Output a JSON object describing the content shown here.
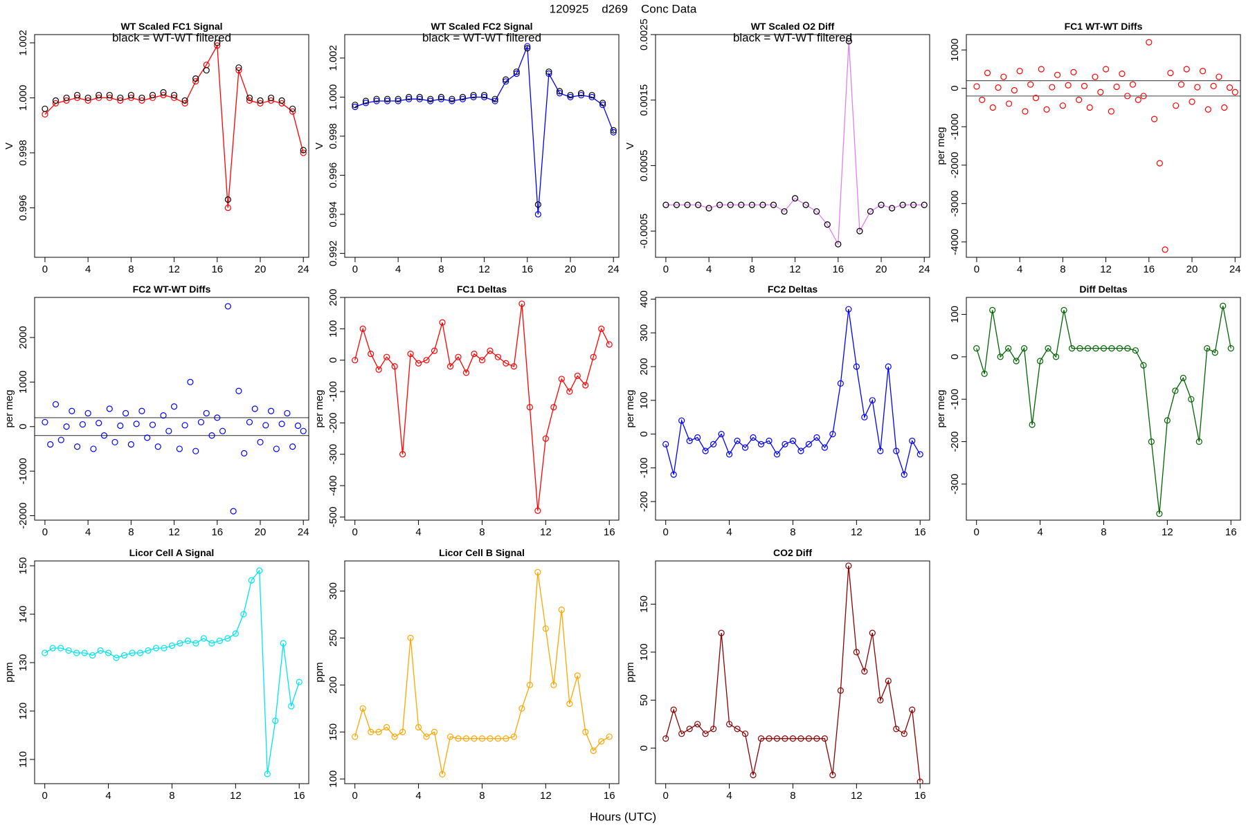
{
  "title": "120925    d269    Conc Data",
  "xlabel": "Hours (UTC)",
  "chart_data": [
    {
      "type": "line",
      "title": "WT Scaled FC1 Signal",
      "annotation": "black = WT-WT filtered",
      "ylabel": "V",
      "x": [
        0,
        1,
        2,
        3,
        4,
        5,
        6,
        7,
        8,
        9,
        10,
        11,
        12,
        13,
        14,
        15,
        16,
        17,
        18,
        19,
        20,
        21,
        22,
        23,
        24
      ],
      "xlim": [
        -0.96,
        24.5
      ],
      "xticks": [
        0,
        4,
        8,
        12,
        16,
        20,
        24
      ],
      "ylim": [
        0.9942,
        1.0023
      ],
      "yticks": [
        0.996,
        0.998,
        {
          "value": 1,
          "label": "1.000"
        },
        1.002
      ],
      "series": [
        {
          "color": "#ff0000",
          "style": "both",
          "values": [
            0.9994,
            0.9998,
            0.9999,
            1.0,
            0.9999,
            1.0,
            1.0,
            0.9999,
            1.0,
            0.9999,
            1.0,
            1.0001,
            1.0,
            0.9998,
            1.0006,
            1.0012,
            1.0019,
            0.996,
            1.001,
            0.9999,
            0.9998,
            0.9999,
            0.9998,
            0.9995,
            0.998
          ]
        },
        {
          "color": "#000000",
          "style": "points",
          "values": [
            0.9996,
            0.9999,
            1.0,
            1.0001,
            1.0,
            1.0001,
            1.0001,
            1.0,
            1.0001,
            1.0,
            1.0001,
            1.0002,
            1.0001,
            0.9999,
            1.0007,
            1.001,
            1.002,
            0.9963,
            1.0011,
            1.0,
            0.9999,
            1.0,
            0.9999,
            0.9996,
            0.9981
          ]
        }
      ]
    },
    {
      "type": "line",
      "title": "WT Scaled FC2 Signal",
      "annotation": "black = WT-WT filtered",
      "ylabel": "V",
      "x": [
        0,
        1,
        2,
        3,
        4,
        5,
        6,
        7,
        8,
        9,
        10,
        11,
        12,
        13,
        14,
        15,
        16,
        17,
        18,
        19,
        20,
        21,
        22,
        23,
        24
      ],
      "xlim": [
        -0.96,
        24.5
      ],
      "xticks": [
        0,
        4,
        8,
        12,
        16,
        20,
        24
      ],
      "ylim": [
        0.9918,
        1.0032
      ],
      "yticks": [
        0.992,
        0.994,
        0.996,
        0.998,
        {
          "value": 1,
          "label": "1.000"
        },
        1.002
      ],
      "series": [
        {
          "color": "#0000ff",
          "style": "both",
          "values": [
            0.9995,
            0.9997,
            0.9998,
            0.9998,
            0.9998,
            0.9999,
            0.9999,
            0.9998,
            0.9999,
            0.9998,
            0.9999,
            1.0,
            1.0,
            0.9998,
            1.0008,
            1.0012,
            1.0026,
            0.994,
            1.0012,
            1.0002,
            1.0,
            1.0001,
            1.0,
            0.9996,
            0.9982
          ]
        },
        {
          "color": "#000000",
          "style": "points",
          "values": [
            0.9996,
            0.9998,
            0.9999,
            0.9999,
            0.9999,
            1.0,
            1.0,
            0.9999,
            1.0,
            0.9999,
            1.0,
            1.0001,
            1.0001,
            0.9999,
            1.0009,
            1.0013,
            1.0025,
            0.9945,
            1.0013,
            1.0003,
            1.0001,
            1.0002,
            1.0001,
            0.9997,
            0.9983
          ]
        }
      ]
    },
    {
      "type": "line",
      "title": "WT Scaled O2 Diff",
      "annotation": "black = WT-WT filtered",
      "ylabel": "V",
      "x": [
        0,
        1,
        2,
        3,
        4,
        5,
        6,
        7,
        8,
        9,
        10,
        11,
        12,
        13,
        14,
        15,
        16,
        17,
        18,
        19,
        20,
        21,
        22,
        23,
        24
      ],
      "xlim": [
        -0.96,
        24.5
      ],
      "xticks": [
        0,
        4,
        8,
        12,
        16,
        20,
        24
      ],
      "ylim": [
        -0.0009,
        0.0025
      ],
      "yticks": [
        -0.0005,
        0.0005,
        0.0015,
        0.0025
      ],
      "series": [
        {
          "color": "#e080f0",
          "style": "both",
          "values": [
            -0.0001,
            -0.0001,
            -0.0001,
            -0.0001,
            -0.00015,
            -0.0001,
            -0.0001,
            -0.0001,
            -0.0001,
            -0.0001,
            -0.0001,
            -0.0002,
            0.0,
            -0.0001,
            -0.0002,
            -0.0004,
            -0.0007,
            0.0024,
            -0.0005,
            -0.0002,
            -0.0001,
            -0.00015,
            -0.0001,
            -0.0001,
            -0.0001
          ]
        },
        {
          "color": "#000000",
          "style": "points",
          "values": [
            -0.0001,
            -0.0001,
            -0.0001,
            -0.0001,
            -0.00015,
            -0.0001,
            -0.0001,
            -0.0001,
            -0.0001,
            -0.0001,
            -0.0001,
            -0.0002,
            0.0,
            -0.0001,
            -0.0002,
            -0.0004,
            -0.0007,
            0.0024,
            -0.0005,
            -0.0002,
            -0.0001,
            -0.00015,
            -0.0001,
            -0.0001,
            -0.0001
          ]
        }
      ]
    },
    {
      "type": "scatter",
      "title": "FC1 WT-WT Diffs",
      "ylabel": "per meg",
      "x": [
        0,
        0.5,
        1,
        1.5,
        2,
        2.5,
        3,
        3.5,
        4,
        4.5,
        5,
        5.5,
        6,
        6.5,
        7,
        7.5,
        8,
        8.5,
        9,
        9.5,
        10,
        10.5,
        11,
        11.5,
        12,
        12.5,
        13,
        13.5,
        14,
        14.5,
        15,
        15.5,
        16,
        16.5,
        17,
        17.5,
        18,
        18.5,
        19,
        19.5,
        20,
        20.5,
        21,
        21.5,
        22,
        22.5,
        23,
        23.5,
        24
      ],
      "xlim": [
        -0.96,
        24.5
      ],
      "xticks": [
        0,
        4,
        8,
        12,
        16,
        20,
        24
      ],
      "ylim": [
        -4400,
        1400
      ],
      "yticks": [
        -4000,
        -3000,
        -2000,
        -1000,
        0,
        1000
      ],
      "hlines": [
        200,
        -200
      ],
      "series": [
        {
          "color": "#ff0000",
          "style": "points",
          "values": [
            50,
            -300,
            400,
            -500,
            20,
            300,
            -400,
            -50,
            450,
            -600,
            100,
            -250,
            500,
            -550,
            30,
            350,
            -450,
            80,
            420,
            -300,
            60,
            -500,
            300,
            -100,
            500,
            -600,
            40,
            380,
            -200,
            100,
            -300,
            -200,
            1200,
            -800,
            -1950,
            -4200,
            400,
            -450,
            100,
            500,
            -350,
            30,
            450,
            -550,
            60,
            300,
            -500,
            20,
            -100
          ]
        }
      ]
    },
    {
      "type": "scatter",
      "title": "FC2 WT-WT Diffs",
      "ylabel": "per meg",
      "x": [
        0,
        0.5,
        1,
        1.5,
        2,
        2.5,
        3,
        3.5,
        4,
        4.5,
        5,
        5.5,
        6,
        6.5,
        7,
        7.5,
        8,
        8.5,
        9,
        9.5,
        10,
        10.5,
        11,
        11.5,
        12,
        12.5,
        13,
        13.5,
        14,
        14.5,
        15,
        15.5,
        16,
        16.5,
        17,
        17.5,
        18,
        18.5,
        19,
        19.5,
        20,
        20.5,
        21,
        21.5,
        22,
        22.5,
        23,
        23.5,
        24
      ],
      "xlim": [
        -0.96,
        24.5
      ],
      "xticks": [
        0,
        4,
        8,
        12,
        16,
        20,
        24
      ],
      "ylim": [
        -2100,
        2900
      ],
      "yticks": [
        -2000,
        -1000,
        0,
        1000,
        2000
      ],
      "hlines": [
        200,
        -200
      ],
      "series": [
        {
          "color": "#0000ff",
          "style": "points",
          "values": [
            100,
            -400,
            500,
            -300,
            0,
            350,
            -450,
            50,
            300,
            -500,
            80,
            -200,
            400,
            -350,
            20,
            300,
            -400,
            60,
            350,
            -250,
            40,
            -450,
            250,
            -100,
            450,
            -500,
            30,
            1000,
            -550,
            100,
            300,
            -200,
            200,
            -100,
            2700,
            -1900,
            800,
            -600,
            100,
            400,
            -350,
            30,
            350,
            -500,
            60,
            300,
            -450,
            20,
            -100
          ]
        }
      ]
    },
    {
      "type": "line",
      "title": "FC1 Deltas",
      "ylabel": "per meg",
      "x": [
        0,
        0.5,
        1,
        1.5,
        2,
        2.5,
        3,
        3.5,
        4,
        4.5,
        5,
        5.5,
        6,
        6.5,
        7,
        7.5,
        8,
        8.5,
        9,
        9.5,
        10,
        10.5,
        11,
        11.5,
        12,
        12.5,
        13,
        13.5,
        14,
        14.5,
        15,
        15.5,
        16
      ],
      "xlim": [
        -0.64,
        16.6
      ],
      "xticks": [
        0,
        4,
        8,
        12,
        16
      ],
      "ylim": [
        -510,
        200
      ],
      "yticks": [
        -500,
        -400,
        -300,
        -200,
        -100,
        0,
        100,
        200
      ],
      "series": [
        {
          "color": "#ff0000",
          "style": "both",
          "values": [
            0,
            100,
            20,
            -30,
            10,
            -20,
            -300,
            20,
            -10,
            0,
            30,
            120,
            -20,
            10,
            -40,
            20,
            0,
            30,
            10,
            -10,
            -20,
            180,
            -150,
            -480,
            -250,
            -150,
            -60,
            -100,
            -50,
            -80,
            10,
            100,
            50
          ]
        }
      ]
    },
    {
      "type": "line",
      "title": "FC2 Deltas",
      "ylabel": "per meg",
      "x": [
        0,
        0.5,
        1,
        1.5,
        2,
        2.5,
        3,
        3.5,
        4,
        4.5,
        5,
        5.5,
        6,
        6.5,
        7,
        7.5,
        8,
        8.5,
        9,
        9.5,
        10,
        10.5,
        11,
        11.5,
        12,
        12.5,
        13,
        13.5,
        14,
        14.5,
        15,
        15.5,
        16
      ],
      "xlim": [
        -0.64,
        16.6
      ],
      "xticks": [
        0,
        4,
        8,
        12,
        16
      ],
      "ylim": [
        -255,
        405
      ],
      "yticks": [
        -200,
        -100,
        0,
        100,
        200,
        300,
        400
      ],
      "series": [
        {
          "color": "#0000ff",
          "style": "both",
          "values": [
            -30,
            -120,
            40,
            -20,
            -10,
            -50,
            -30,
            0,
            -60,
            -20,
            -40,
            -10,
            -30,
            -20,
            -60,
            -30,
            -20,
            -50,
            -30,
            -10,
            -40,
            0,
            150,
            370,
            200,
            50,
            100,
            -50,
            200,
            -50,
            -120,
            -20,
            -60
          ]
        }
      ]
    },
    {
      "type": "line",
      "title": "Diff Deltas",
      "ylabel": "per meg",
      "x": [
        0,
        0.5,
        1,
        1.5,
        2,
        2.5,
        3,
        3.5,
        4,
        4.5,
        5,
        5.5,
        6,
        6.5,
        7,
        7.5,
        8,
        8.5,
        9,
        9.5,
        10,
        10.5,
        11,
        11.5,
        12,
        12.5,
        13,
        13.5,
        14,
        14.5,
        15,
        15.5,
        16
      ],
      "xlim": [
        -0.64,
        16.6
      ],
      "xticks": [
        0,
        4,
        8,
        12,
        16
      ],
      "ylim": [
        -385,
        140
      ],
      "yticks": [
        -300,
        -200,
        -100,
        0,
        100
      ],
      "series": [
        {
          "color": "#006400",
          "style": "both",
          "values": [
            20,
            -40,
            110,
            0,
            20,
            -10,
            20,
            -160,
            -10,
            20,
            0,
            110,
            20,
            20,
            20,
            20,
            20,
            20,
            20,
            20,
            15,
            -20,
            -200,
            -370,
            -150,
            -80,
            -50,
            -100,
            -200,
            20,
            10,
            120,
            20
          ]
        }
      ]
    },
    {
      "type": "line",
      "title": "Licor Cell A Signal",
      "ylabel": "ppm",
      "x": [
        0,
        0.5,
        1,
        1.5,
        2,
        2.5,
        3,
        3.5,
        4,
        4.5,
        5,
        5.5,
        6,
        6.5,
        7,
        7.5,
        8,
        8.5,
        9,
        9.5,
        10,
        10.5,
        11,
        11.5,
        12,
        12.5,
        13,
        13.5,
        14,
        14.5,
        15,
        15.5,
        16
      ],
      "xlim": [
        -0.64,
        16.6
      ],
      "xticks": [
        0,
        4,
        8,
        12,
        16
      ],
      "ylim": [
        105,
        151
      ],
      "yticks": [
        110,
        120,
        130,
        140,
        150
      ],
      "series": [
        {
          "color": "#00e5ee",
          "style": "both",
          "values": [
            132,
            133,
            133,
            132.5,
            132,
            132,
            131.5,
            132.5,
            132,
            131,
            131.5,
            132,
            132,
            132.5,
            133,
            133,
            133.5,
            134,
            134.5,
            134,
            135,
            134,
            134.5,
            135,
            136,
            140,
            147,
            149,
            107,
            118,
            134,
            121,
            126
          ]
        }
      ]
    },
    {
      "type": "line",
      "title": "Licor Cell B Signal",
      "ylabel": "ppm",
      "x": [
        0,
        0.5,
        1,
        1.5,
        2,
        2.5,
        3,
        3.5,
        4,
        4.5,
        5,
        5.5,
        6,
        6.5,
        7,
        7.5,
        8,
        8.5,
        9,
        9.5,
        10,
        10.5,
        11,
        11.5,
        12,
        12.5,
        13,
        13.5,
        14,
        14.5,
        15,
        15.5,
        16
      ],
      "xlim": [
        -0.64,
        16.6
      ],
      "xticks": [
        0,
        4,
        8,
        12,
        16
      ],
      "ylim": [
        95,
        332
      ],
      "yticks": [
        100,
        150,
        200,
        250,
        300
      ],
      "series": [
        {
          "color": "#ffa500",
          "style": "both",
          "values": [
            145,
            175,
            150,
            150,
            155,
            145,
            150,
            250,
            155,
            145,
            150,
            105,
            145,
            143,
            143,
            143,
            143,
            143,
            143,
            143,
            145,
            175,
            200,
            320,
            260,
            200,
            280,
            180,
            210,
            150,
            130,
            140,
            145
          ]
        }
      ]
    },
    {
      "type": "line",
      "title": "CO2 Diff",
      "ylabel": "ppm",
      "x": [
        0,
        0.5,
        1,
        1.5,
        2,
        2.5,
        3,
        3.5,
        4,
        4.5,
        5,
        5.5,
        6,
        6.5,
        7,
        7.5,
        8,
        8.5,
        9,
        9.5,
        10,
        10.5,
        11,
        11.5,
        12,
        12.5,
        13,
        13.5,
        14,
        14.5,
        15,
        15.5,
        16
      ],
      "xlim": [
        -0.64,
        16.6
      ],
      "xticks": [
        0,
        4,
        8,
        12,
        16
      ],
      "ylim": [
        -37,
        195
      ],
      "yticks": [
        0,
        50,
        100,
        150
      ],
      "series": [
        {
          "color": "#8b0000",
          "style": "both",
          "values": [
            10,
            40,
            15,
            20,
            25,
            15,
            20,
            120,
            25,
            20,
            15,
            -28,
            10,
            10,
            10,
            10,
            10,
            10,
            10,
            10,
            10,
            -28,
            60,
            190,
            100,
            80,
            120,
            50,
            70,
            20,
            15,
            40,
            -35
          ]
        }
      ]
    }
  ]
}
